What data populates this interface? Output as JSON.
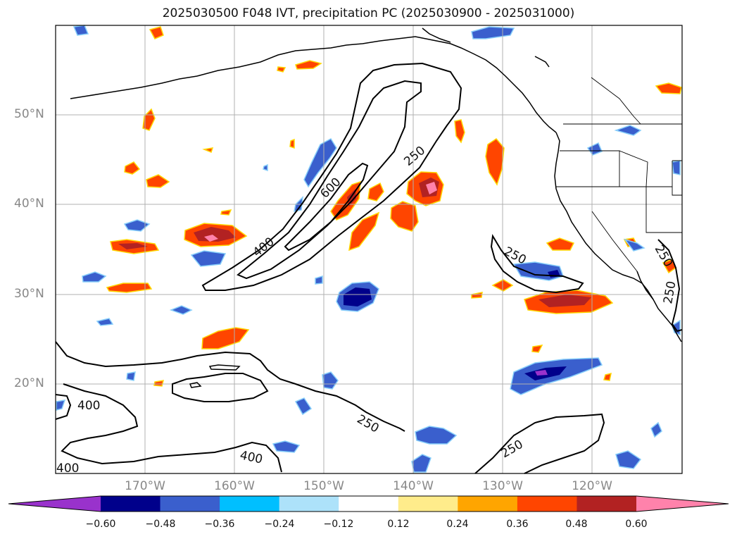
{
  "title": "2025030500 F048 IVT, precipitation PC (2025030900 - 2025031000)",
  "latitude_labels": [
    "50°N",
    "40°N",
    "30°N",
    "20°N"
  ],
  "longitude_labels": [
    "170°W",
    "160°W",
    "150°W",
    "140°W",
    "130°W",
    "120°W"
  ],
  "colorbar": {
    "ticks": [
      "−0.60",
      "−0.48",
      "−0.36",
      "−0.24",
      "−0.12",
      "0.12",
      "0.24",
      "0.36",
      "0.48",
      "0.60"
    ],
    "colors": [
      "#9932CC",
      "#00008B",
      "#3A5FCD",
      "#00BFFF",
      "#ADE2FA",
      "#FFFFFF",
      "#FFEC8B",
      "#FFA500",
      "#FF4500",
      "#B22222",
      "#FF82AB"
    ]
  },
  "contour_labels": {
    "c600": "600",
    "c400_a": "400",
    "c250_a": "250",
    "c250_b": "250",
    "c250_c": "250",
    "c250_d": "250",
    "c250_e": "250",
    "c400_b": "400",
    "c400_c": "400",
    "c400_d": "400",
    "c250_f": "250"
  }
}
